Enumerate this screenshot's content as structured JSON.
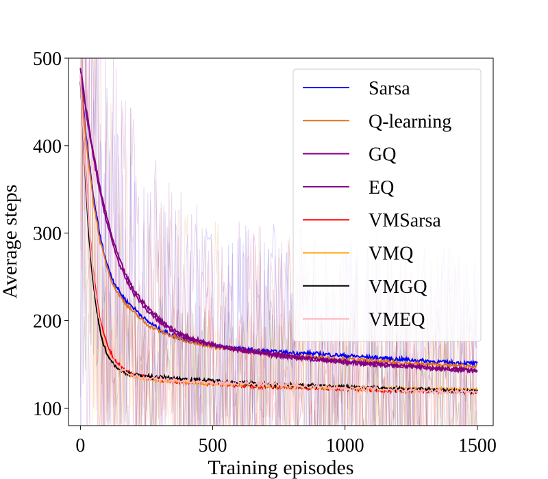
{
  "chart_data": {
    "type": "line",
    "title": "",
    "xlabel": "Training episodes",
    "ylabel": "Average steps",
    "xlim": [
      -45,
      1560
    ],
    "ylim": [
      80,
      500
    ],
    "grid": false,
    "legend_placement": "top-right",
    "x_ticks": [
      0,
      500,
      1000,
      1500
    ],
    "y_ticks": [
      100,
      200,
      300,
      400,
      500
    ],
    "x_tick_labels": [
      "0",
      "500",
      "1000",
      "1500"
    ],
    "y_tick_labels": [
      "100",
      "200",
      "300",
      "400",
      "500"
    ],
    "series": [
      {
        "name": "Sarsa",
        "color": "#0000ff",
        "x": [
          0,
          25,
          50,
          75,
          100,
          125,
          150,
          175,
          200,
          250,
          300,
          350,
          400,
          450,
          500,
          600,
          700,
          800,
          900,
          1000,
          1100,
          1200,
          1300,
          1400,
          1500
        ],
        "y": [
          480,
          400,
          340,
          295,
          265,
          245,
          232,
          222,
          215,
          200,
          190,
          183,
          178,
          175,
          172,
          168,
          165,
          163,
          162,
          160,
          158,
          156,
          154,
          152,
          151
        ]
      },
      {
        "name": "Q-learning",
        "color": "#e07020",
        "x": [
          0,
          25,
          50,
          75,
          100,
          125,
          150,
          175,
          200,
          250,
          300,
          350,
          400,
          450,
          500,
          600,
          700,
          800,
          900,
          1000,
          1100,
          1200,
          1300,
          1400,
          1500
        ],
        "y": [
          478,
          395,
          335,
          290,
          262,
          240,
          228,
          218,
          210,
          196,
          188,
          182,
          177,
          174,
          171,
          166,
          163,
          160,
          158,
          156,
          154,
          152,
          150,
          149,
          148
        ]
      },
      {
        "name": "GQ",
        "color": "#8b008b",
        "x": [
          0,
          25,
          50,
          75,
          100,
          125,
          150,
          175,
          200,
          250,
          300,
          350,
          400,
          450,
          500,
          600,
          700,
          800,
          900,
          1000,
          1100,
          1200,
          1300,
          1400,
          1500
        ],
        "y": [
          488,
          430,
          385,
          345,
          312,
          285,
          262,
          245,
          232,
          212,
          198,
          188,
          180,
          176,
          172,
          166,
          162,
          158,
          155,
          152,
          150,
          148,
          146,
          144,
          142
        ]
      },
      {
        "name": "EQ",
        "color": "#800080",
        "x": [
          0,
          25,
          50,
          75,
          100,
          125,
          150,
          175,
          200,
          250,
          300,
          350,
          400,
          450,
          500,
          600,
          700,
          800,
          900,
          1000,
          1100,
          1200,
          1300,
          1400,
          1500
        ],
        "y": [
          490,
          435,
          390,
          350,
          318,
          290,
          268,
          250,
          236,
          216,
          202,
          190,
          182,
          177,
          173,
          167,
          163,
          159,
          156,
          153,
          151,
          149,
          147,
          145,
          144
        ]
      },
      {
        "name": "VMSarsa",
        "color": "#ff0000",
        "x": [
          0,
          15,
          30,
          45,
          60,
          75,
          90,
          105,
          120,
          140,
          160,
          180,
          200,
          250,
          300,
          350,
          400,
          450,
          500,
          600,
          700,
          800,
          900,
          1000,
          1100,
          1200,
          1300,
          1400,
          1500
        ],
        "y": [
          480,
          395,
          320,
          265,
          228,
          200,
          182,
          170,
          160,
          151,
          145,
          141,
          138,
          135,
          133,
          131,
          130,
          129,
          128,
          126,
          125,
          124,
          123,
          122,
          121,
          120,
          120,
          119,
          119
        ]
      },
      {
        "name": "VMQ",
        "color": "#ffa500",
        "x": [
          0,
          15,
          30,
          45,
          60,
          75,
          90,
          105,
          120,
          140,
          160,
          180,
          200,
          250,
          300,
          350,
          400,
          450,
          500,
          600,
          700,
          800,
          900,
          1000,
          1100,
          1200,
          1300,
          1400,
          1500
        ],
        "y": [
          478,
          390,
          312,
          258,
          220,
          193,
          175,
          163,
          155,
          147,
          142,
          139,
          137,
          134,
          132,
          131,
          130,
          129,
          128,
          127,
          126,
          125,
          124,
          123,
          122,
          122,
          121,
          121,
          120
        ]
      },
      {
        "name": "VMGQ",
        "color": "#000000",
        "x": [
          0,
          15,
          30,
          45,
          60,
          75,
          90,
          105,
          120,
          140,
          160,
          180,
          200,
          250,
          300,
          350,
          400,
          450,
          500,
          600,
          700,
          800,
          900,
          1000,
          1100,
          1200,
          1300,
          1400,
          1500
        ],
        "y": [
          475,
          385,
          305,
          252,
          215,
          188,
          170,
          160,
          153,
          146,
          142,
          140,
          138,
          136,
          135,
          134,
          133,
          132,
          131,
          129,
          127,
          126,
          125,
          124,
          123,
          122,
          121,
          120,
          119
        ]
      },
      {
        "name": "VMEQ",
        "color": "#ffb6c1",
        "x": [
          0,
          15,
          30,
          45,
          60,
          75,
          90,
          105,
          120,
          140,
          160,
          180,
          200,
          250,
          300,
          350,
          400,
          450,
          500,
          600,
          700,
          800,
          900,
          1000,
          1100,
          1200,
          1300,
          1400,
          1500
        ],
        "y": [
          480,
          392,
          318,
          262,
          222,
          195,
          176,
          165,
          156,
          148,
          143,
          140,
          137,
          134,
          133,
          132,
          131,
          130,
          129,
          128,
          127,
          126,
          124,
          123,
          122,
          121,
          120,
          119,
          118
        ]
      }
    ]
  }
}
